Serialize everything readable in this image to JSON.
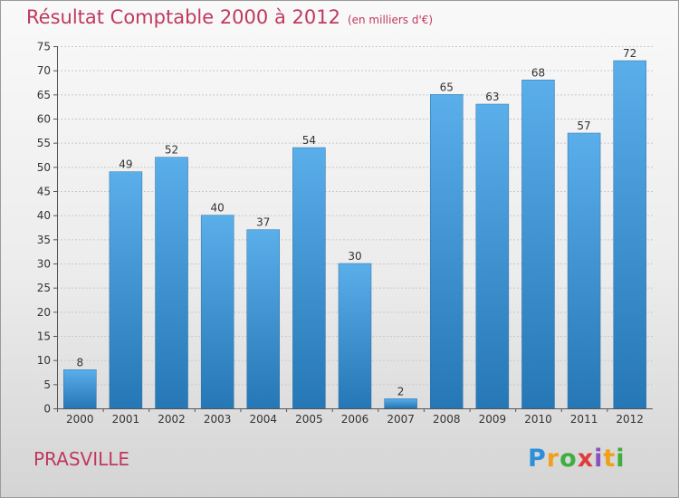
{
  "chart_data": {
    "type": "bar",
    "title": "Résultat Comptable 2000 à 2012",
    "subtitle": "(en milliers d'€)",
    "categories": [
      "2000",
      "2001",
      "2002",
      "2003",
      "2004",
      "2005",
      "2006",
      "2007",
      "2008",
      "2009",
      "2010",
      "2011",
      "2012"
    ],
    "values": [
      8,
      49,
      52,
      40,
      37,
      54,
      30,
      2,
      65,
      63,
      68,
      57,
      72
    ],
    "ylim": [
      0,
      75
    ],
    "yticks": [
      0,
      5,
      10,
      15,
      20,
      25,
      30,
      35,
      40,
      45,
      50,
      55,
      60,
      65,
      70,
      75
    ],
    "grid": true,
    "bar_color_top": "#5aaeea",
    "bar_color_bottom": "#2677b5"
  },
  "footer": {
    "place": "PRASVILLE",
    "logo_letters": [
      "P",
      "r",
      "o",
      "x",
      "i",
      "t",
      "i"
    ],
    "logo_colors": [
      "#2c8fd8",
      "#f0a11b",
      "#3fae3f",
      "#e23b3b",
      "#8a4fc1",
      "#f0a11b",
      "#3fae3f"
    ]
  }
}
